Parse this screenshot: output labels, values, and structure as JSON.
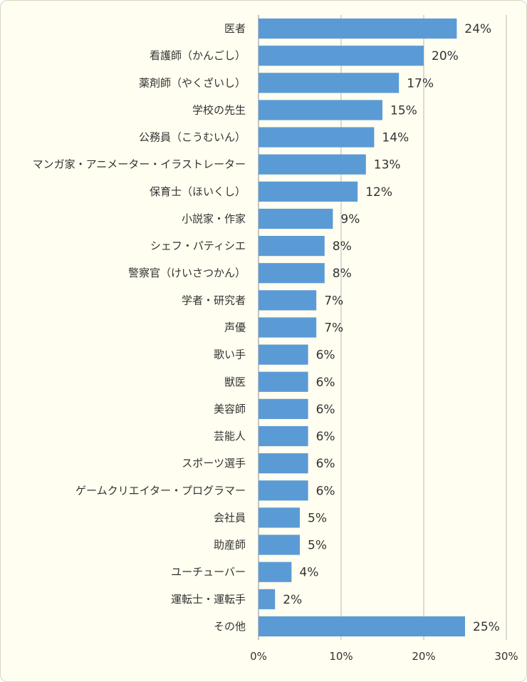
{
  "chart_data": {
    "type": "bar",
    "orientation": "horizontal",
    "categories": [
      "医者",
      "看護師（かんごし）",
      "薬剤師（やくざいし）",
      "学校の先生",
      "公務員（こうむいん）",
      "マンガ家・アニメーター・イラストレーター",
      "保育士（ほいくし）",
      "小説家・作家",
      "シェフ・パティシエ",
      "警察官（けいさつかん）",
      "学者・研究者",
      "声優",
      "歌い手",
      "獣医",
      "美容師",
      "芸能人",
      "スポーツ選手",
      "ゲームクリエイター・プログラマー",
      "会社員",
      "助産師",
      "ユーチューバー",
      "運転士・運転手",
      "その他"
    ],
    "values": [
      24,
      20,
      17,
      15,
      14,
      13,
      12,
      9,
      8,
      8,
      7,
      7,
      6,
      6,
      6,
      6,
      6,
      6,
      5,
      5,
      4,
      2,
      25
    ],
    "value_labels": [
      "24%",
      "20%",
      "17%",
      "15%",
      "14%",
      "13%",
      "12%",
      "9%",
      "8%",
      "8%",
      "7%",
      "7%",
      "6%",
      "6%",
      "6%",
      "6%",
      "6%",
      "6%",
      "5%",
      "5%",
      "4%",
      "2%",
      "25%"
    ],
    "xlim": [
      0,
      30
    ],
    "xticks": [
      0,
      10,
      20,
      30
    ],
    "xtick_labels": [
      "0%",
      "10%",
      "20%",
      "30%"
    ],
    "grid": "vertical",
    "bar_color": "#5b9bd5",
    "grid_color": "#c8c8c8",
    "background": "#fffef0",
    "title": "",
    "xlabel": "",
    "ylabel": ""
  }
}
